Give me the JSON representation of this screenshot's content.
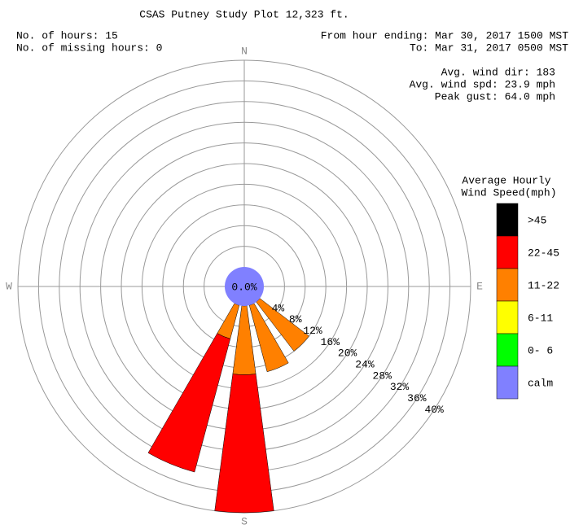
{
  "chart_data": {
    "type": "windrose",
    "title": "CSAS Putney Study Plot 12,323 ft.",
    "info_left": [
      "No. of hours: 15",
      "No. of missing hours: 0"
    ],
    "info_right": [
      "From hour ending: Mar 30, 2017 1500 MST",
      "To: Mar 31, 2017 0500 MST"
    ],
    "stats": [
      "Avg. wind dir: 183",
      "Avg. wind spd: 23.9 mph",
      "Peak gust: 64.0 mph"
    ],
    "legend_title": [
      "Average Hourly",
      "Wind Speed(mph)"
    ],
    "compass": [
      "N",
      "E",
      "S",
      "W"
    ],
    "x": [
      135,
      157.5,
      180,
      202.5
    ],
    "series": [
      {
        "name": ">45",
        "color": "#000000",
        "values": [
          0,
          0,
          0,
          0
        ]
      },
      {
        "name": "22-45",
        "color": "#ff0000",
        "values": [
          0,
          0,
          26.7,
          26.7
        ]
      },
      {
        "name": "11-22",
        "color": "#ff8000",
        "values": [
          12,
          13.3,
          13.3,
          6.7
        ]
      },
      {
        "name": "6-11",
        "color": "#ffff00",
        "values": [
          0,
          0,
          0,
          0
        ]
      },
      {
        "name": "0- 6",
        "color": "#00ff00",
        "values": [
          0,
          0,
          0,
          0
        ]
      }
    ],
    "calm": {
      "name": "calm",
      "color": "#8080ff",
      "value": 0,
      "value_label": "0.0%"
    },
    "rlim": [
      0,
      40
    ],
    "rticks": [
      {
        "value": 4,
        "label": "4%"
      },
      {
        "value": 8,
        "label": "8%"
      },
      {
        "value": 12,
        "label": "12%"
      },
      {
        "value": 16,
        "label": "16%"
      },
      {
        "value": 20,
        "label": "20%"
      },
      {
        "value": 24,
        "label": "24%"
      },
      {
        "value": 28,
        "label": "28%"
      },
      {
        "value": 32,
        "label": "32%"
      },
      {
        "value": 36,
        "label": "36%"
      },
      {
        "value": 40,
        "label": "40%"
      }
    ]
  }
}
